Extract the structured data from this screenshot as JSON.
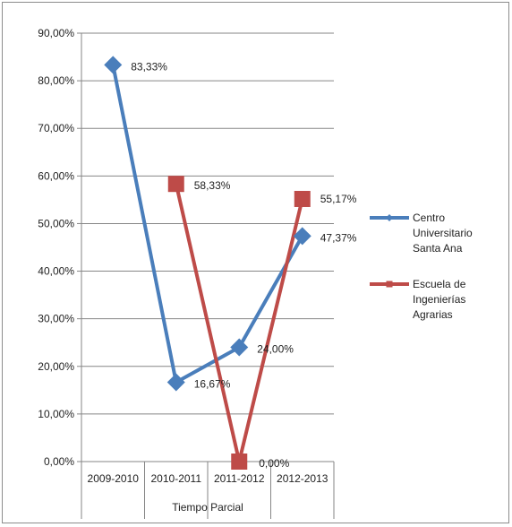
{
  "chart_data": {
    "type": "line",
    "categories": [
      "2009-2010",
      "2010-2011",
      "2011-2012",
      "2012-2013"
    ],
    "xlabel": "Tiempo Parcial",
    "ylabel": "",
    "ylim": [
      0,
      90
    ],
    "ytick_step": 10,
    "ytick_labels": [
      "0,00%",
      "10,00%",
      "20,00%",
      "30,00%",
      "40,00%",
      "50,00%",
      "60,00%",
      "70,00%",
      "80,00%",
      "90,00%"
    ],
    "grid": true,
    "legend_position": "right",
    "series": [
      {
        "name": "Centro Universitario Santa Ana",
        "legend_lines": [
          "Centro",
          "Universitario",
          "Santa Ana"
        ],
        "marker": "diamond",
        "color": "#4a7ebb",
        "values": [
          83.33,
          16.67,
          24.0,
          47.37
        ],
        "labels": [
          "83,33%",
          "16,67%",
          "24,00%",
          "47,37%"
        ]
      },
      {
        "name": "Escuela de Ingenierías Agrarias",
        "legend_lines": [
          "Escuela de",
          "Ingenierías",
          "Agrarias"
        ],
        "marker": "square",
        "color": "#be4b48",
        "values": [
          null,
          58.33,
          0.0,
          55.17
        ],
        "labels": [
          null,
          "58,33%",
          "0,00%",
          "55,17%"
        ]
      }
    ]
  }
}
